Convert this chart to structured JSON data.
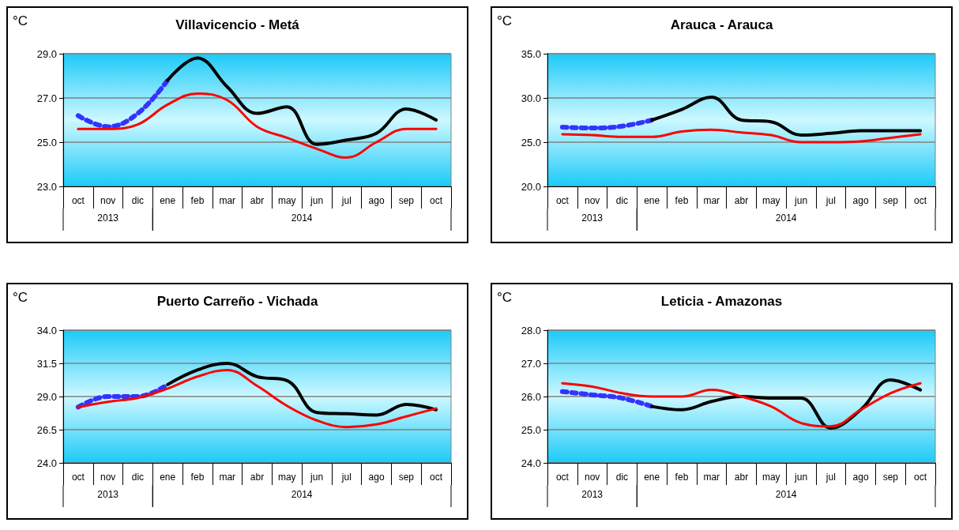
{
  "chart_data": [
    {
      "type": "line",
      "title": "Villavicencio - Metá",
      "ylabel": "°C",
      "categories": [
        "oct",
        "nov",
        "dic",
        "ene",
        "feb",
        "mar",
        "abr",
        "may",
        "jun",
        "jul",
        "ago",
        "sep",
        "oct"
      ],
      "series": [
        {
          "color": "#3333ff",
          "line_style": "dotted",
          "values": [
            26.2,
            25.7,
            26.3,
            27.8,
            null,
            null,
            null,
            null,
            null,
            null,
            null,
            null,
            null
          ]
        },
        {
          "color": "#000000",
          "values": [
            null,
            null,
            null,
            27.8,
            28.8,
            27.5,
            26.3,
            26.6,
            24.9,
            25.1,
            25.4,
            26.5,
            26.0
          ]
        },
        {
          "color": "#ff0000",
          "values": [
            25.6,
            25.6,
            25.8,
            26.7,
            27.2,
            26.9,
            25.7,
            25.2,
            24.7,
            24.3,
            25.0,
            25.6,
            25.6
          ]
        }
      ],
      "ylim": [
        23,
        29
      ],
      "yticks": [
        {
          "value": 23,
          "label": "23.0"
        },
        {
          "value": 25,
          "label": "25.0"
        },
        {
          "value": 27,
          "label": "27.0"
        },
        {
          "value": 29,
          "label": "29.0"
        }
      ],
      "annotations": [
        "2013",
        "2014"
      ],
      "grid": "y",
      "marker": "none",
      "line_style": "solid"
    },
    {
      "type": "line",
      "title": "Arauca - Arauca",
      "ylabel": "°C",
      "categories": [
        "oct",
        "nov",
        "dic",
        "ene",
        "feb",
        "mar",
        "abr",
        "may",
        "jun",
        "jul",
        "ago",
        "sep",
        "oct"
      ],
      "series": [
        {
          "color": "#3333ff",
          "line_style": "dotted",
          "values": [
            26.7,
            26.6,
            26.8,
            27.5,
            null,
            null,
            null,
            null,
            null,
            null,
            null,
            null,
            null
          ]
        },
        {
          "color": "#000000",
          "values": [
            null,
            null,
            null,
            27.5,
            28.7,
            30.1,
            27.5,
            27.3,
            25.8,
            26.0,
            26.3,
            26.3,
            26.3
          ]
        },
        {
          "color": "#ff0000",
          "values": [
            25.9,
            25.8,
            25.6,
            25.6,
            26.2,
            26.4,
            26.1,
            25.8,
            25.0,
            25.0,
            25.1,
            25.5,
            25.9
          ]
        }
      ],
      "ylim": [
        20,
        35
      ],
      "yticks": [
        {
          "value": 20,
          "label": "20.0"
        },
        {
          "value": 25,
          "label": "25.0"
        },
        {
          "value": 30,
          "label": "30.0"
        },
        {
          "value": 35,
          "label": "35.0"
        }
      ],
      "annotations": [
        "2013",
        "2014"
      ],
      "grid": "y",
      "marker": "none",
      "line_style": "solid"
    },
    {
      "type": "line",
      "title": "Puerto Carreño - Vichada",
      "ylabel": "°C",
      "categories": [
        "oct",
        "nov",
        "dic",
        "ene",
        "feb",
        "mar",
        "abr",
        "may",
        "jun",
        "jul",
        "ago",
        "sep",
        "oct"
      ],
      "series": [
        {
          "color": "#3333ff",
          "line_style": "dotted",
          "values": [
            28.2,
            29.0,
            29.0,
            29.9,
            null,
            null,
            null,
            null,
            null,
            null,
            null,
            null,
            null
          ]
        },
        {
          "color": "#000000",
          "values": [
            null,
            null,
            null,
            29.9,
            31.0,
            31.5,
            30.5,
            30.2,
            27.8,
            27.7,
            27.6,
            28.4,
            28.0
          ]
        },
        {
          "color": "#ff0000",
          "values": [
            28.2,
            28.6,
            28.9,
            29.6,
            30.5,
            31.0,
            29.8,
            28.3,
            27.2,
            26.7,
            26.9,
            27.5,
            28.1
          ]
        }
      ],
      "ylim": [
        24,
        34
      ],
      "yticks": [
        {
          "value": 24,
          "label": "24.0"
        },
        {
          "value": 26.5,
          "label": "26.5"
        },
        {
          "value": 29,
          "label": "29.0"
        },
        {
          "value": 31.5,
          "label": "31.5"
        },
        {
          "value": 34,
          "label": "34.0"
        }
      ],
      "annotations": [
        "2013",
        "2014"
      ],
      "grid": "y",
      "marker": "none",
      "line_style": "solid"
    },
    {
      "type": "line",
      "title": "Leticia - Amazonas",
      "ylabel": "°C",
      "categories": [
        "oct",
        "nov",
        "dic",
        "ene",
        "feb",
        "mar",
        "abr",
        "may",
        "jun",
        "jul",
        "ago",
        "sep",
        "oct"
      ],
      "series": [
        {
          "color": "#3333ff",
          "line_style": "dotted",
          "values": [
            26.15,
            26.05,
            25.95,
            25.7,
            null,
            null,
            null,
            null,
            null,
            null,
            null,
            null,
            null
          ]
        },
        {
          "color": "#000000",
          "values": [
            null,
            null,
            null,
            25.7,
            25.6,
            25.85,
            26.0,
            25.95,
            25.95,
            25.05,
            25.6,
            26.5,
            26.2
          ]
        },
        {
          "color": "#ff0000",
          "values": [
            26.4,
            26.3,
            26.1,
            26.0,
            26.0,
            26.2,
            26.0,
            25.7,
            25.2,
            25.1,
            25.6,
            26.1,
            26.4
          ]
        }
      ],
      "ylim": [
        24,
        28
      ],
      "yticks": [
        {
          "value": 24,
          "label": "24.0"
        },
        {
          "value": 25,
          "label": "25.0"
        },
        {
          "value": 26,
          "label": "26.0"
        },
        {
          "value": 27,
          "label": "27.0"
        },
        {
          "value": 28,
          "label": "28.0"
        }
      ],
      "annotations": [
        "2013",
        "2014"
      ],
      "grid": "y",
      "marker": "none",
      "line_style": "solid"
    }
  ]
}
